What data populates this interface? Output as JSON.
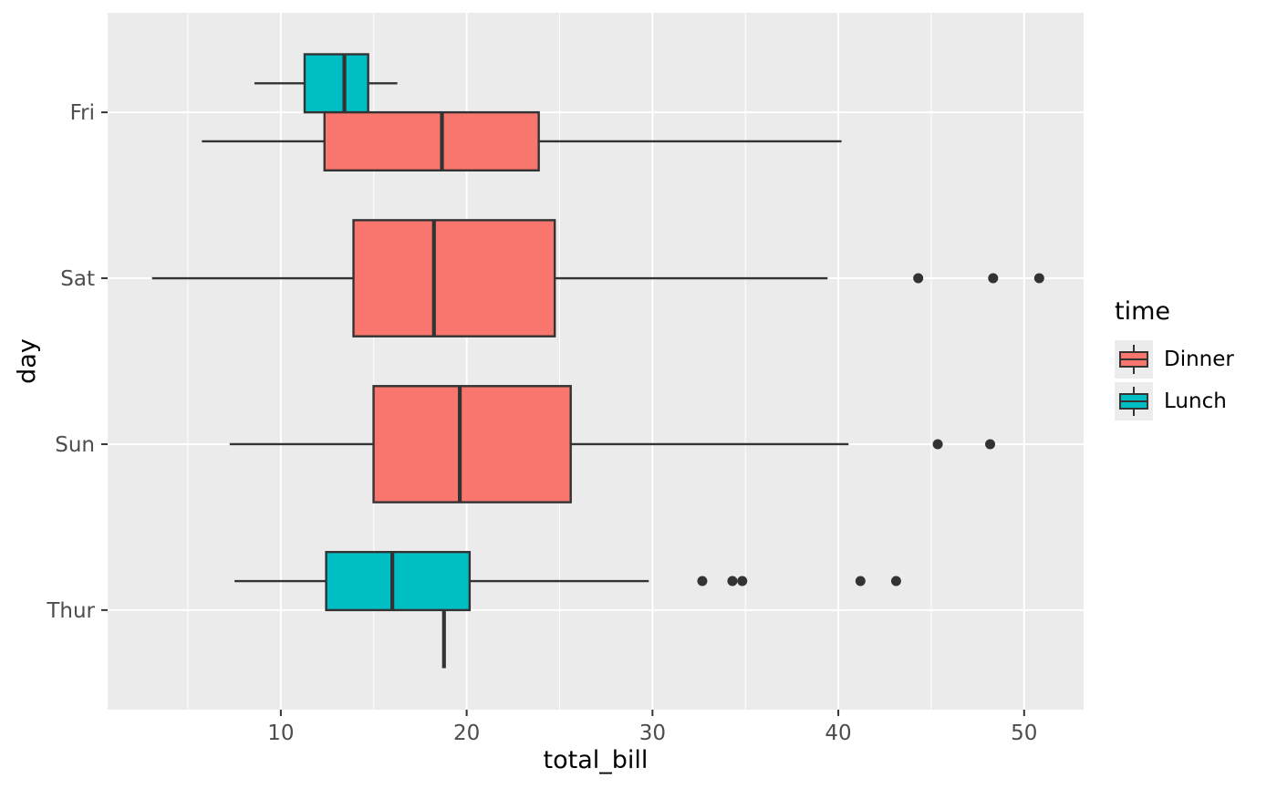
{
  "chart_data": {
    "type": "boxplot",
    "orientation": "horizontal",
    "title": "",
    "xlabel": "total_bill",
    "ylabel": "day",
    "x_major_ticks": [
      10,
      20,
      30,
      40,
      50
    ],
    "x_minor_ticks": [
      5,
      15,
      25,
      35,
      45
    ],
    "xlim": [
      0.68,
      53.2
    ],
    "categories": [
      "Fri",
      "Sat",
      "Sun",
      "Thur"
    ],
    "legend": {
      "title": "time",
      "position": "right",
      "entries": [
        {
          "label": "Dinner",
          "color": "#F8766D"
        },
        {
          "label": "Lunch",
          "color": "#00BFC4"
        }
      ]
    },
    "style": {
      "panel_bg": "#EBEBEB",
      "grid_color": "#FFFFFF",
      "line_color": "#333333",
      "tick_label_color": "#4D4D4D",
      "axis_title_color": "#000000",
      "legend_key_bg": "#ECECEC"
    },
    "boxes": [
      {
        "category": "Fri",
        "group": "Lunch",
        "slot": "upper",
        "whisker_low": 8.58,
        "q1": 11.28,
        "median": 13.42,
        "q3": 14.7,
        "whisker_high": 16.27,
        "outliers": []
      },
      {
        "category": "Fri",
        "group": "Dinner",
        "slot": "lower",
        "whisker_low": 5.75,
        "q1": 12.35,
        "median": 18.67,
        "q3": 23.88,
        "whisker_high": 40.17,
        "outliers": []
      },
      {
        "category": "Sat",
        "group": "Dinner",
        "slot": "full",
        "whisker_low": 3.07,
        "q1": 13.91,
        "median": 18.24,
        "q3": 24.74,
        "whisker_high": 39.42,
        "outliers": [
          44.3,
          48.33,
          50.81
        ]
      },
      {
        "category": "Sun",
        "group": "Dinner",
        "slot": "full",
        "whisker_low": 7.25,
        "q1": 14.99,
        "median": 19.63,
        "q3": 25.6,
        "whisker_high": 40.55,
        "outliers": [
          45.35,
          48.17
        ]
      },
      {
        "category": "Thur",
        "group": "Lunch",
        "slot": "upper",
        "whisker_low": 7.51,
        "q1": 12.44,
        "median": 16.0,
        "q3": 20.16,
        "whisker_high": 29.8,
        "outliers": [
          32.68,
          34.3,
          34.83,
          41.19,
          43.11
        ]
      },
      {
        "category": "Thur",
        "group": "Dinner",
        "slot": "lower",
        "degenerate": true,
        "whisker_low": 18.78,
        "q1": 18.78,
        "median": 18.78,
        "q3": 18.78,
        "whisker_high": 18.78,
        "outliers": []
      }
    ]
  }
}
